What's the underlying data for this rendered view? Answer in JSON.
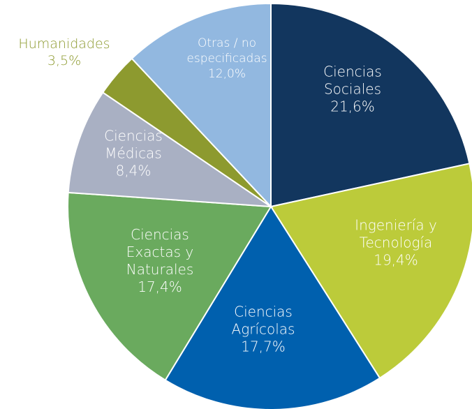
{
  "chart_data": {
    "type": "pie",
    "categories": [
      "Ciencias Sociales",
      "Ingeniería y Tecnología",
      "Ciencias Agrícolas",
      "Ciencias Exactas y Naturales",
      "Ciencias Médicas",
      "Humanidades",
      "Otras / no especificadas"
    ],
    "values": [
      21.6,
      19.4,
      17.7,
      17.4,
      8.4,
      3.5,
      12.0
    ],
    "value_labels": [
      "21,6%",
      "19,4%",
      "17,7%",
      "17,4%",
      "8,4%",
      "3,5%",
      "12,0%"
    ],
    "colors": [
      "#12365e",
      "#bccb3a",
      "#0060ae",
      "#6aaa5e",
      "#a9b0c3",
      "#8d9a2f",
      "#92b8e0"
    ]
  }
}
